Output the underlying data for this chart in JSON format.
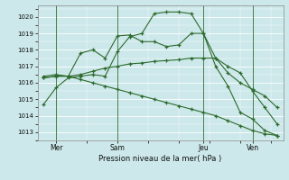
{
  "title": "",
  "xlabel": "Pression niveau de la mer( hPa )",
  "ylabel": "",
  "bg_color": "#cce8ea",
  "grid_color": "#ffffff",
  "line_color": "#2d6a2d",
  "ylim": [
    1012.5,
    1020.7
  ],
  "xtick_labels": [
    "Mer",
    "Sam",
    "Jeu",
    "Ven"
  ],
  "xtick_positions": [
    1,
    6,
    13,
    17
  ],
  "ytick_labels": [
    "1013",
    "1014",
    "1015",
    "1016",
    "1017",
    "1018",
    "1019",
    "1020"
  ],
  "ytick_values": [
    1013,
    1014,
    1015,
    1016,
    1017,
    1018,
    1019,
    1020
  ],
  "series": [
    [
      1014.7,
      1015.7,
      1016.3,
      1016.4,
      1016.5,
      1016.4,
      1017.9,
      1018.8,
      1019.0,
      1020.2,
      1020.3,
      1020.3,
      1020.2,
      1019.0,
      1017.0,
      1015.8,
      1014.2,
      1013.8,
      1013.1,
      1012.8
    ],
    [
      1016.4,
      1016.5,
      1016.4,
      1017.8,
      1018.0,
      1017.5,
      1018.85,
      1018.9,
      1018.5,
      1018.5,
      1018.2,
      1018.3,
      1019.0,
      1019.0,
      1017.5,
      1016.6,
      1016.0,
      1015.6,
      1015.2,
      1014.5
    ],
    [
      1016.3,
      1016.4,
      1016.4,
      1016.5,
      1016.7,
      1016.9,
      1017.0,
      1017.15,
      1017.2,
      1017.3,
      1017.35,
      1017.4,
      1017.5,
      1017.5,
      1017.5,
      1017.0,
      1016.6,
      1015.5,
      1014.5,
      1013.5
    ],
    [
      1016.3,
      1016.4,
      1016.4,
      1016.2,
      1016.0,
      1015.8,
      1015.6,
      1015.4,
      1015.2,
      1015.0,
      1014.8,
      1014.6,
      1014.4,
      1014.2,
      1014.0,
      1013.7,
      1013.4,
      1013.1,
      1012.9,
      1012.8
    ]
  ],
  "vline_positions": [
    1,
    6,
    13,
    17
  ],
  "n_points": 20
}
